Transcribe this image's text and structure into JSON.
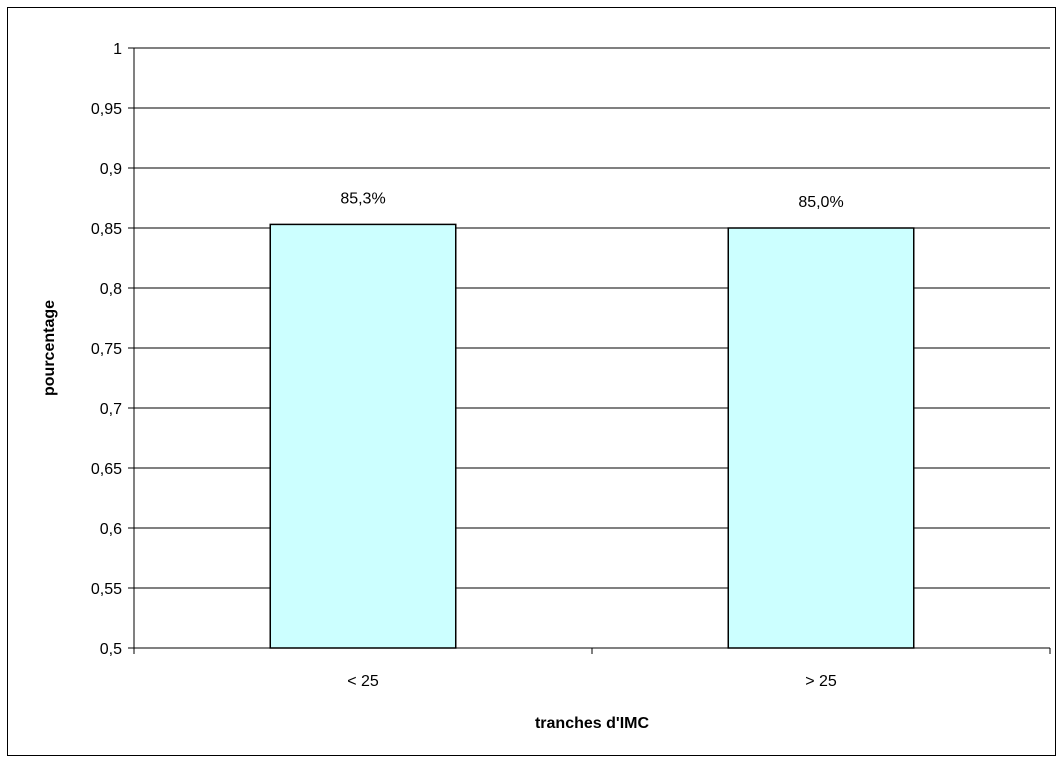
{
  "chart_data": {
    "type": "bar",
    "categories": [
      "< 25",
      "> 25"
    ],
    "values": [
      0.853,
      0.85
    ],
    "data_labels": [
      "85,3%",
      "85,0%"
    ],
    "xlabel": "tranches d'IMC",
    "ylabel": "pourcentage",
    "ylim": [
      0.5,
      1
    ],
    "yticks": [
      0.5,
      0.55,
      0.6,
      0.65,
      0.7,
      0.75,
      0.8,
      0.85,
      0.9,
      0.95,
      1
    ],
    "ytick_labels": [
      "0,5",
      "0,55",
      "0,6",
      "0,65",
      "0,7",
      "0,75",
      "0,8",
      "0,85",
      "0,9",
      "0,95",
      "1"
    ],
    "grid": true,
    "legend": "none",
    "colors": {
      "bar_fill": "#ccffff",
      "bar_stroke": "#000000",
      "grid": "#000000"
    }
  }
}
